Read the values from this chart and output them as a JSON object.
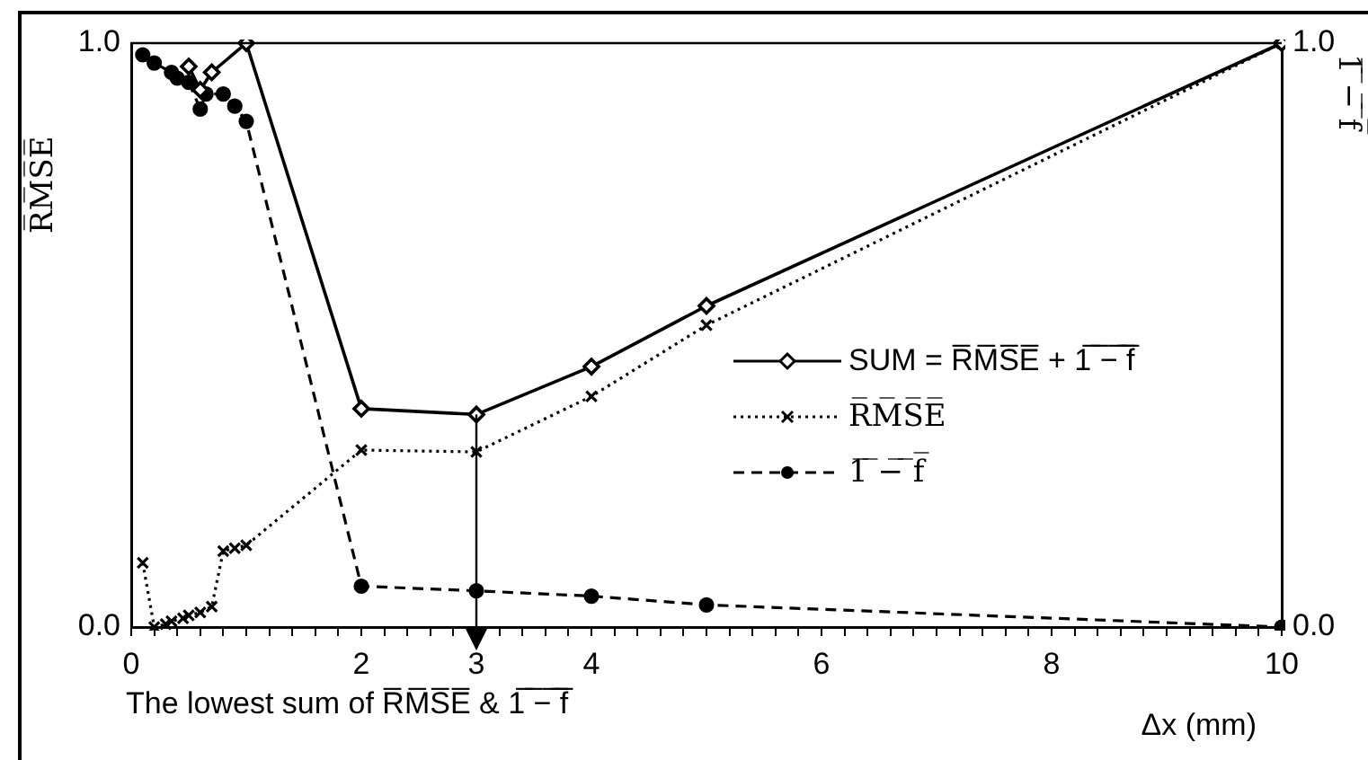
{
  "chart_data": {
    "type": "line",
    "xlabel": "Δx (mm)",
    "ylabel": "R̅M̅S̅E̅",
    "y2label": "1̅ ̅−̅ ̅f̅",
    "xlim": [
      0,
      10
    ],
    "ylim": [
      0,
      1
    ],
    "y2lim": [
      0,
      1
    ],
    "xticks": [
      0,
      {
        "value": 0.2,
        "label": null
      },
      {
        "value": 0.4,
        "label": null
      },
      {
        "value": 0.6,
        "label": null
      },
      {
        "value": 0.8,
        "label": null
      },
      {
        "value": 1,
        "label": null
      },
      {
        "value": 1.2,
        "label": null
      },
      {
        "value": 1.4,
        "label": null
      },
      {
        "value": 1.6,
        "label": null
      },
      {
        "value": 1.8,
        "label": null
      },
      2,
      {
        "value": 2.2,
        "label": null
      },
      {
        "value": 2.4,
        "label": null
      },
      {
        "value": 2.6,
        "label": null
      },
      {
        "value": 2.8,
        "label": null
      },
      3,
      {
        "value": 3.2,
        "label": null
      },
      {
        "value": 3.4,
        "label": null
      },
      {
        "value": 3.6,
        "label": null
      },
      {
        "value": 3.8,
        "label": null
      },
      4,
      {
        "value": 4.2,
        "label": null
      },
      {
        "value": 4.4,
        "label": null
      },
      {
        "value": 4.6,
        "label": null
      },
      {
        "value": 4.8,
        "label": null
      },
      {
        "value": 5,
        "label": null
      },
      {
        "value": 5.2,
        "label": null
      },
      {
        "value": 5.4,
        "label": null
      },
      {
        "value": 5.6,
        "label": null
      },
      {
        "value": 5.8,
        "label": null
      },
      6,
      {
        "value": 6.2,
        "label": null
      },
      {
        "value": 6.4,
        "label": null
      },
      {
        "value": 6.6,
        "label": null
      },
      {
        "value": 6.8,
        "label": null
      },
      {
        "value": 7,
        "label": null
      },
      {
        "value": 7.2,
        "label": null
      },
      {
        "value": 7.4,
        "label": null
      },
      {
        "value": 7.6,
        "label": null
      },
      {
        "value": 7.8,
        "label": null
      },
      8,
      {
        "value": 8.2,
        "label": null
      },
      {
        "value": 8.4,
        "label": null
      },
      {
        "value": 8.6,
        "label": null
      },
      {
        "value": 8.8,
        "label": null
      },
      {
        "value": 9,
        "label": null
      },
      {
        "value": 9.2,
        "label": null
      },
      {
        "value": 9.4,
        "label": null
      },
      {
        "value": 9.6,
        "label": null
      },
      {
        "value": 9.8,
        "label": null
      },
      10
    ],
    "yticks": [
      {
        "value": 0,
        "label": "0.0"
      },
      {
        "value": 1,
        "label": "1.0"
      }
    ],
    "y2ticks": [
      {
        "value": 0,
        "label": "0.0"
      },
      {
        "value": 1,
        "label": "1.0"
      }
    ],
    "grid": false,
    "legend": "right",
    "series": [
      {
        "name": "SUM = R̅M̅S̅E̅ + 1̅ ̅−̅ ̅f̅",
        "color": "#000000",
        "marker": "diamond",
        "line_style": "solid",
        "x": [
          0.5,
          0.6,
          0.7,
          1,
          2,
          3,
          4,
          5,
          10
        ],
        "values": [
          0.96,
          0.92,
          0.95,
          1.0,
          0.374,
          0.364,
          0.446,
          0.55,
          1.0
        ]
      },
      {
        "name": "R̅M̅S̅E̅",
        "color": "#000000",
        "marker": "cross",
        "line_style": "dotted",
        "x": [
          0.1,
          0.2,
          0.3,
          0.35,
          0.45,
          0.5,
          0.6,
          0.7,
          0.8,
          0.9,
          1,
          2,
          3,
          4,
          5,
          10
        ],
        "values": [
          0.11,
          0,
          0.005,
          0.01,
          0.015,
          0.02,
          0.025,
          0.035,
          0.13,
          0.135,
          0.14,
          0.303,
          0.3,
          0.395,
          0.517,
          1.0
        ]
      },
      {
        "name": "1̅ ̅−̅ ̅f̅",
        "color": "#000000",
        "marker": "circle",
        "line_style": "dashed",
        "axis": "y2",
        "x": [
          0.1,
          0.2,
          0.35,
          0.4,
          0.5,
          0.6,
          0.65,
          0.8,
          0.9,
          1,
          2,
          3,
          4,
          5,
          10
        ],
        "values": [
          0.98,
          0.966,
          0.95,
          0.94,
          0.933,
          0.887,
          0.913,
          0.913,
          0.892,
          0.866,
          0.07,
          0.062,
          0.053,
          0.038,
          0
        ]
      }
    ],
    "ref_lines": [
      {
        "axis": "x",
        "value": 3
      }
    ],
    "annotations": [
      "The lowest sum of R̅M̅S̅E̅ & 1̅ ̅−̅ ̅f̅"
    ]
  }
}
